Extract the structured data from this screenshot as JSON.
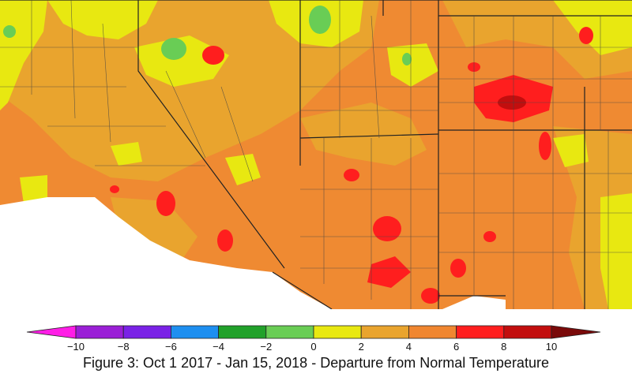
{
  "legend": {
    "ticks": [
      "−10",
      "−8",
      "−6",
      "−4",
      "−2",
      "0",
      "2",
      "4",
      "6",
      "8",
      "10"
    ],
    "colors": [
      "#ff1ee6",
      "#9a1fd6",
      "#7a22e6",
      "#1e8ff0",
      "#21a12a",
      "#69cd55",
      "#e8e811",
      "#e9a42e",
      "#f08630",
      "#ff1e1e",
      "#c20e0e",
      "#7a0a0a"
    ]
  },
  "caption": "Figure 3: Oct 1 2017 - Jan 15, 2018 - Departure from Normal Temperature"
}
